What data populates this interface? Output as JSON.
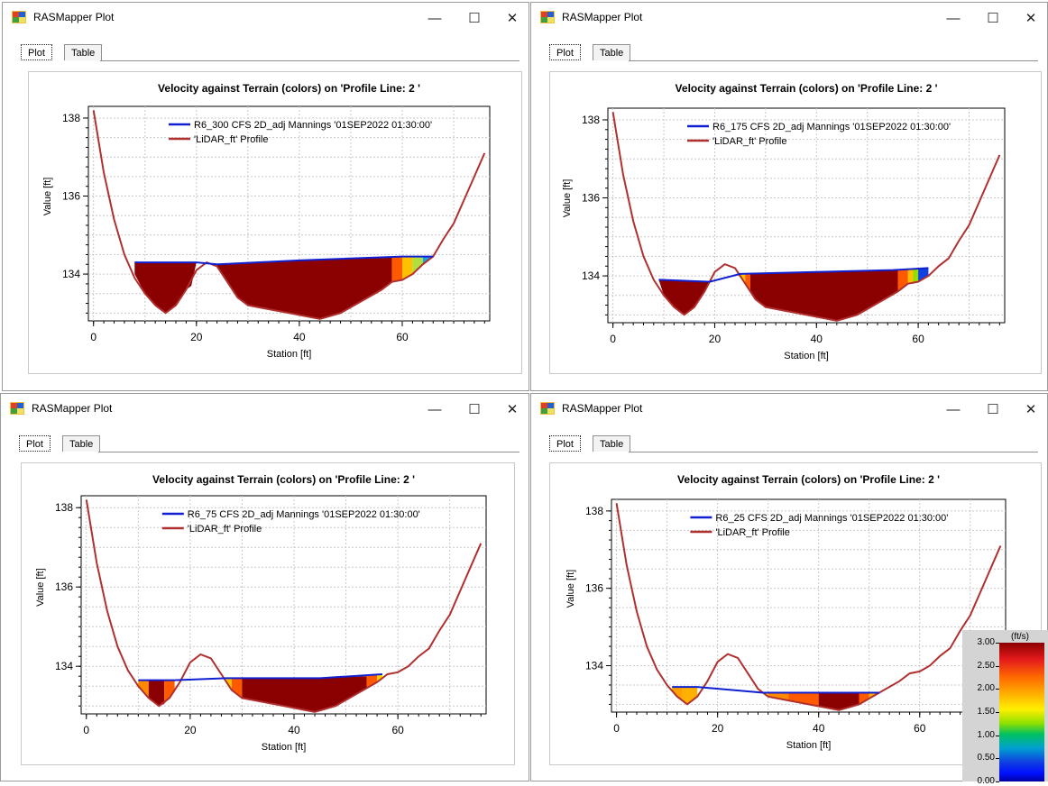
{
  "window": {
    "title": "RASMapper Plot",
    "tabs": [
      "Plot",
      "Table"
    ],
    "minimize_symbol": "—",
    "maximize_symbol": "☐",
    "close_symbol": "✕"
  },
  "colors": {
    "terrain_line": "#b03030",
    "wse_line": "#1020d0",
    "dominant_fill": "#8b0000"
  },
  "plots": [
    {
      "title": "Velocity against Terrain (colors) on 'Profile Line: 2 '",
      "legend_wse": "R6_300 CFS 2D_adj Mannings '01SEP2022 01:30:00'",
      "legend_terrain": "'LiDAR_ft' Profile",
      "xlabel": "Station [ft]",
      "ylabel": "Value [ft]",
      "xticks": [
        "0",
        "20",
        "40",
        "60"
      ],
      "yticks": [
        "138",
        "136",
        "134"
      ]
    },
    {
      "title": "Velocity against Terrain (colors) on 'Profile Line: 2 '",
      "legend_wse": "R6_175 CFS 2D_adj Mannings '01SEP2022 01:30:00'",
      "legend_terrain": "'LiDAR_ft' Profile",
      "xlabel": "Station [ft]",
      "ylabel": "Value [ft]",
      "xticks": [
        "0",
        "20",
        "40",
        "60"
      ],
      "yticks": [
        "138",
        "136",
        "134"
      ]
    },
    {
      "title": "Velocity against Terrain (colors) on 'Profile Line: 2 '",
      "legend_wse": "R6_75 CFS 2D_adj Mannings '01SEP2022 01:30:00'",
      "legend_terrain": "'LiDAR_ft' Profile",
      "xlabel": "Station [ft]",
      "ylabel": "Value [ft]",
      "xticks": [
        "0",
        "20",
        "40",
        "60"
      ],
      "yticks": [
        "138",
        "136",
        "134"
      ]
    },
    {
      "title": "Velocity against Terrain (colors) on 'Profile Line: 2 '",
      "legend_wse": "R6_25 CFS 2D_adj Mannings '01SEP2022 01:30:00'",
      "legend_terrain": "'LiDAR_ft' Profile",
      "xlabel": "Station [ft]",
      "ylabel": "Value [ft]",
      "xticks": [
        "0",
        "20",
        "40",
        "60"
      ],
      "yticks": [
        "138",
        "136",
        "134"
      ]
    }
  ],
  "colorbar": {
    "unit": "(ft/s)",
    "labels": [
      "3.00",
      "2.50",
      "2.00",
      "1.50",
      "1.00",
      "0.50",
      "0.00"
    ],
    "stops": [
      "#8b0000",
      "#e41a1c",
      "#ff6a00",
      "#ffb000",
      "#fff000",
      "#8fe000",
      "#00c060",
      "#00a0d0",
      "#1040e0",
      "#0010ff",
      "#0000a0"
    ]
  },
  "chart_data": [
    {
      "type": "line",
      "title": "Velocity against Terrain (colors) on 'Profile Line: 2 '",
      "xlabel": "Station [ft]",
      "ylabel": "Value [ft]",
      "xlim": [
        -1,
        77
      ],
      "ylim": [
        132.8,
        138.3
      ],
      "series": [
        {
          "name": "'LiDAR_ft' Profile",
          "x": [
            0,
            2,
            4,
            6,
            8,
            10,
            12,
            14,
            16,
            18,
            20,
            22,
            24,
            26,
            28,
            30,
            34,
            38,
            42,
            44,
            48,
            52,
            56,
            58,
            60,
            62,
            64,
            66,
            68,
            70,
            72,
            74,
            76
          ],
          "y": [
            138.2,
            136.6,
            135.4,
            134.5,
            133.9,
            133.5,
            133.2,
            133.0,
            133.2,
            133.6,
            134.1,
            134.3,
            134.2,
            133.8,
            133.4,
            133.2,
            133.1,
            133.0,
            132.9,
            132.85,
            133.0,
            133.3,
            133.6,
            133.8,
            133.85,
            134.0,
            134.25,
            134.45,
            134.9,
            135.3,
            135.9,
            136.5,
            137.1
          ]
        },
        {
          "name": "R6_300 CFS 2D_adj Mannings '01SEP2022 01:30:00'",
          "x": [
            8,
            20,
            24,
            40,
            60,
            66
          ],
          "y": [
            134.3,
            134.3,
            134.25,
            134.35,
            134.45,
            134.45
          ]
        }
      ]
    },
    {
      "type": "line",
      "title": "Velocity against Terrain (colors) on 'Profile Line: 2 '",
      "xlabel": "Station [ft]",
      "ylabel": "Value [ft]",
      "xlim": [
        -1,
        77
      ],
      "ylim": [
        132.8,
        138.3
      ],
      "series": [
        {
          "name": "'LiDAR_ft' Profile",
          "x": [
            0,
            2,
            4,
            6,
            8,
            10,
            12,
            14,
            16,
            18,
            20,
            22,
            24,
            26,
            28,
            30,
            34,
            38,
            42,
            44,
            48,
            52,
            56,
            58,
            60,
            62,
            64,
            66,
            68,
            70,
            72,
            74,
            76
          ],
          "y": [
            138.2,
            136.6,
            135.4,
            134.5,
            133.9,
            133.5,
            133.2,
            133.0,
            133.2,
            133.6,
            134.1,
            134.3,
            134.2,
            133.8,
            133.4,
            133.2,
            133.1,
            133.0,
            132.9,
            132.85,
            133.0,
            133.3,
            133.6,
            133.8,
            133.85,
            134.0,
            134.25,
            134.45,
            134.9,
            135.3,
            135.9,
            136.5,
            137.1
          ]
        },
        {
          "name": "R6_175 CFS 2D_adj Mannings '01SEP2022 01:30:00'",
          "x": [
            9,
            19,
            25,
            40,
            55,
            62
          ],
          "y": [
            133.9,
            133.85,
            134.05,
            134.1,
            134.15,
            134.2
          ]
        }
      ]
    },
    {
      "type": "line",
      "title": "Velocity against Terrain (colors) on 'Profile Line: 2 '",
      "xlabel": "Station [ft]",
      "ylabel": "Value [ft]",
      "xlim": [
        -1,
        77
      ],
      "ylim": [
        132.8,
        138.3
      ],
      "series": [
        {
          "name": "'LiDAR_ft' Profile",
          "x": [
            0,
            2,
            4,
            6,
            8,
            10,
            12,
            14,
            16,
            18,
            20,
            22,
            24,
            26,
            28,
            30,
            34,
            38,
            42,
            44,
            48,
            52,
            56,
            58,
            60,
            62,
            64,
            66,
            68,
            70,
            72,
            74,
            76
          ],
          "y": [
            138.2,
            136.6,
            135.4,
            134.5,
            133.9,
            133.5,
            133.2,
            133.0,
            133.2,
            133.6,
            134.1,
            134.3,
            134.2,
            133.8,
            133.4,
            133.2,
            133.1,
            133.0,
            132.9,
            132.85,
            133.0,
            133.3,
            133.6,
            133.8,
            133.85,
            134.0,
            134.25,
            134.45,
            134.9,
            135.3,
            135.9,
            136.5,
            137.1
          ]
        },
        {
          "name": "R6_75 CFS 2D_adj Mannings '01SEP2022 01:30:00'",
          "x": [
            10,
            17,
            27,
            45,
            57
          ],
          "y": [
            133.65,
            133.65,
            133.7,
            133.7,
            133.8
          ]
        }
      ]
    },
    {
      "type": "line",
      "title": "Velocity against Terrain (colors) on 'Profile Line: 2 '",
      "xlabel": "Station [ft]",
      "ylabel": "Value [ft]",
      "xlim": [
        -1,
        77
      ],
      "ylim": [
        132.8,
        138.3
      ],
      "series": [
        {
          "name": "'LiDAR_ft' Profile",
          "x": [
            0,
            2,
            4,
            6,
            8,
            10,
            12,
            14,
            16,
            18,
            20,
            22,
            24,
            26,
            28,
            30,
            34,
            38,
            42,
            44,
            48,
            52,
            56,
            58,
            60,
            62,
            64,
            66,
            68,
            70,
            72,
            74,
            76
          ],
          "y": [
            138.2,
            136.6,
            135.4,
            134.5,
            133.9,
            133.5,
            133.2,
            133.0,
            133.2,
            133.6,
            134.1,
            134.3,
            134.2,
            133.8,
            133.4,
            133.2,
            133.1,
            133.0,
            132.9,
            132.85,
            133.0,
            133.3,
            133.6,
            133.8,
            133.85,
            134.0,
            134.25,
            134.45,
            134.9,
            135.3,
            135.9,
            136.5,
            137.1
          ]
        },
        {
          "name": "R6_25 CFS 2D_adj Mannings '01SEP2022 01:30:00'",
          "x": [
            11,
            16,
            29,
            40,
            52
          ],
          "y": [
            133.45,
            133.45,
            133.3,
            133.3,
            133.3
          ]
        }
      ]
    }
  ]
}
